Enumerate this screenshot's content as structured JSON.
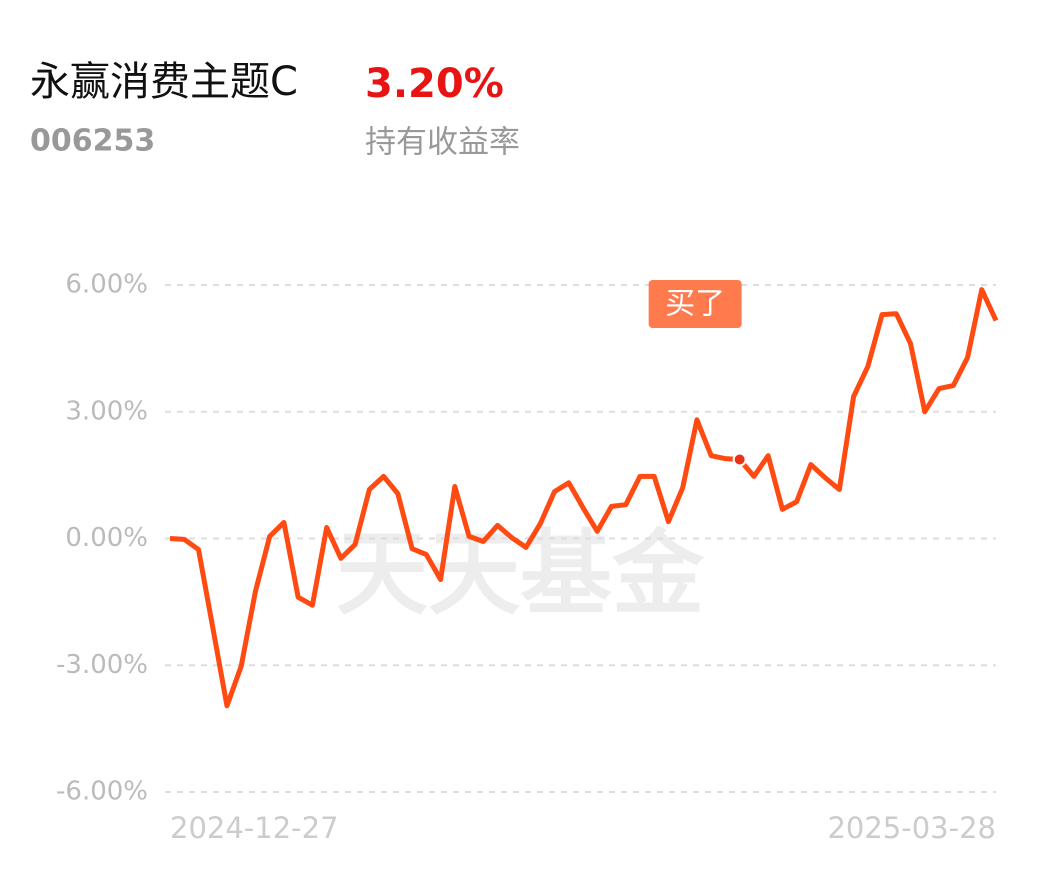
{
  "header": {
    "name": "永赢消费主题C",
    "return": "3.20%",
    "code": "006253",
    "return_label": "持有收益率"
  },
  "chart_data": {
    "type": "line",
    "color": "#ff4a12",
    "grid": true,
    "watermark": "天天基金",
    "annotation": "买了",
    "categories": [
      "2024-12-27",
      null,
      null,
      null,
      null,
      null,
      null,
      null,
      null,
      null,
      null,
      null,
      null,
      null,
      null,
      null,
      null,
      null,
      null,
      null,
      null,
      null,
      null,
      null,
      null,
      null,
      null,
      null,
      null,
      null,
      null,
      null,
      null,
      null,
      null,
      null,
      null,
      null,
      null,
      null,
      null,
      null,
      null,
      null,
      null,
      null,
      null,
      null,
      null,
      null,
      null,
      null,
      null,
      null,
      null,
      null,
      null,
      null,
      "2025-03-28"
    ],
    "values": [
      0.0,
      -0.02,
      -0.26,
      -2.1,
      -3.96,
      -3.02,
      -1.25,
      0.05,
      0.38,
      -1.39,
      -1.58,
      0.26,
      -0.47,
      -0.14,
      1.16,
      1.47,
      1.06,
      -0.24,
      -0.38,
      -0.97,
      1.23,
      0.05,
      -0.07,
      0.31,
      0.02,
      -0.21,
      0.35,
      1.11,
      1.32,
      0.73,
      0.17,
      0.76,
      0.8,
      1.47,
      1.47,
      0.4,
      1.2,
      2.81,
      1.96,
      1.89,
      1.87,
      1.47,
      1.96,
      0.69,
      0.87,
      1.75,
      1.44,
      1.16,
      3.36,
      4.07,
      5.3,
      5.32,
      4.61,
      3.0,
      3.55,
      3.62,
      4.28,
      5.89,
      5.16
    ],
    "ylim": [
      -6,
      6
    ],
    "yticks": [
      {
        "value": -6,
        "label": "-6.00%"
      },
      {
        "value": -3,
        "label": "-3.00%"
      },
      {
        "value": 0,
        "label": "0.00%"
      },
      {
        "value": 3,
        "label": "3.00%"
      },
      {
        "value": 6,
        "label": "6.00%"
      }
    ]
  }
}
